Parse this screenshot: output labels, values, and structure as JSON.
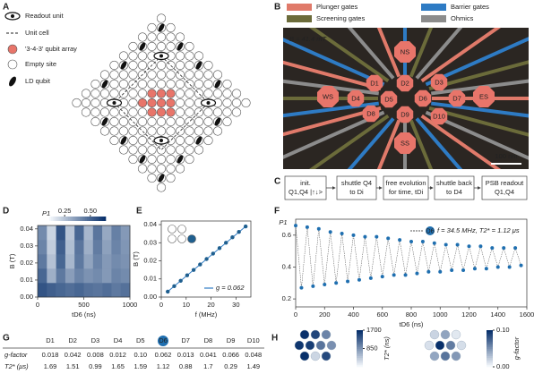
{
  "panel_a": {
    "letter": "A",
    "legend": [
      "Readout unit",
      "Unit cell",
      "'3-4-3' qubit array",
      "Empty site",
      "LD qubit"
    ]
  },
  "panel_b": {
    "letter": "B",
    "legend": [
      {
        "label": "Plunger gates",
        "color": "#e07a6a"
      },
      {
        "label": "Barrier gates",
        "color": "#2e7bc4"
      },
      {
        "label": "Screening gates",
        "color": "#6b6b3a"
      },
      {
        "label": "Ohmics",
        "color": "#8c8c8c"
      }
    ],
    "field": "B = 41.4 mT",
    "scale": "100 nm",
    "gates": [
      "NS",
      "WS",
      "ES",
      "SS",
      "D1",
      "D2",
      "D3",
      "D4",
      "D5",
      "D6",
      "D7",
      "D8",
      "D9",
      "D10"
    ]
  },
  "panel_c": {
    "letter": "C",
    "steps": [
      [
        "init.",
        "Q1,Q4 |↑↓>"
      ],
      [
        "shuttle Q4",
        "to Di"
      ],
      [
        "free evolution",
        "for time, tDi"
      ],
      [
        "shuttle back",
        "to D4"
      ],
      [
        "PSB readout",
        "Q1,Q4"
      ]
    ]
  },
  "panel_d": {
    "letter": "D",
    "xlabel": "tD6 (ns)",
    "ylabel": "B (T)",
    "xlim": [
      0,
      1000
    ],
    "xticks": [
      0,
      500,
      1000
    ],
    "ylim": [
      0,
      0.042
    ],
    "yticks": [
      {
        "value": 0,
        "label": "0.00"
      },
      0.01,
      0.02,
      0.03,
      0.04
    ],
    "colorbar_label": "P1",
    "clim": [
      0.1,
      0.65
    ],
    "cticks": [
      0.25,
      {
        "value": 0.5,
        "label": "0.50"
      }
    ],
    "z": [
      [
        0.55,
        0.52,
        0.5,
        0.48,
        0.5,
        0.47,
        0.46,
        0.48,
        0.45,
        0.47
      ],
      [
        0.5,
        0.3,
        0.45,
        0.35,
        0.42,
        0.38,
        0.4,
        0.36,
        0.42,
        0.4
      ],
      [
        0.45,
        0.25,
        0.5,
        0.28,
        0.45,
        0.33,
        0.42,
        0.36,
        0.4,
        0.38
      ],
      [
        0.42,
        0.22,
        0.52,
        0.26,
        0.46,
        0.3,
        0.44,
        0.34,
        0.42,
        0.37
      ],
      [
        0.4,
        0.2,
        0.55,
        0.24,
        0.5,
        0.28,
        0.46,
        0.32,
        0.43,
        0.36
      ]
    ]
  },
  "panel_e": {
    "letter": "E",
    "xlabel": "f (MHz)",
    "ylabel": "B (T)",
    "xlim": [
      0,
      36
    ],
    "xticks": [
      0,
      10,
      20,
      30
    ],
    "ylim": [
      0,
      0.042
    ],
    "yticks": [
      {
        "value": 0,
        "label": "0.00"
      },
      0.01,
      0.02,
      0.03,
      0.04
    ],
    "legend": "g = 0.062",
    "x": [
      2.6,
      5.2,
      7.8,
      10.4,
      13.0,
      15.6,
      18.2,
      20.8,
      23.4,
      26.0,
      28.6,
      31.2,
      33.9
    ],
    "values": [
      0.003,
      0.006,
      0.009,
      0.012,
      0.015,
      0.018,
      0.021,
      0.024,
      0.027,
      0.03,
      0.033,
      0.036,
      0.039
    ]
  },
  "panel_f": {
    "letter": "F",
    "xlabel": "tD6 (ns)",
    "ylabel": "P1",
    "xlim": [
      0,
      1600
    ],
    "xticks": [
      0,
      200,
      400,
      600,
      800,
      1000,
      1200,
      1400,
      1600
    ],
    "ylim": [
      0.15,
      0.7
    ],
    "yticks": [
      0.2,
      0.4,
      0.6
    ],
    "legend_marker": "D6",
    "legend": "f = 34.5 MHz, T2* = 1.12 μs",
    "x": [
      0,
      40,
      80,
      120,
      160,
      200,
      240,
      280,
      320,
      360,
      400,
      440,
      480,
      520,
      560,
      600,
      640,
      680,
      720,
      760,
      800,
      840,
      880,
      920,
      960,
      1000,
      1040,
      1080,
      1120,
      1160,
      1200,
      1240,
      1280,
      1320,
      1360,
      1400,
      1440,
      1480,
      1520,
      1560
    ],
    "values": [
      0.66,
      0.27,
      0.65,
      0.28,
      0.64,
      0.29,
      0.62,
      0.3,
      0.61,
      0.31,
      0.6,
      0.32,
      0.59,
      0.33,
      0.59,
      0.34,
      0.58,
      0.35,
      0.57,
      0.35,
      0.56,
      0.36,
      0.56,
      0.37,
      0.55,
      0.37,
      0.54,
      0.38,
      0.54,
      0.38,
      0.53,
      0.39,
      0.53,
      0.39,
      0.52,
      0.4,
      0.52,
      0.4,
      0.52,
      0.41
    ]
  },
  "panel_g": {
    "letter": "G",
    "columns": [
      "D1",
      "D2",
      "D3",
      "D4",
      "D5",
      "D6",
      "D7",
      "D8",
      "D9",
      "D10"
    ],
    "highlight": "D6",
    "rows": [
      {
        "label": "g-factor",
        "values": [
          0.018,
          0.042,
          0.008,
          0.012,
          {
            "value": 0.1,
            "label": "0.10"
          },
          0.062,
          0.013,
          0.041,
          0.066,
          0.048
        ]
      },
      {
        "label": "T2* (μs)",
        "values": [
          1.69,
          1.51,
          0.99,
          1.65,
          1.59,
          1.12,
          0.88,
          1.7,
          0.29,
          1.49
        ]
      }
    ]
  },
  "panel_h": {
    "letter": "H",
    "t2": {
      "label": "T2* (ns)",
      "clim": [
        0,
        1700
      ],
      "ticks": [
        850,
        1700
      ],
      "values": [
        1690,
        1510,
        990,
        1650,
        1590,
        1120,
        880,
        1700,
        290,
        1490
      ]
    },
    "g": {
      "label": "g-factor",
      "clim": [
        0,
        0.1
      ],
      "ticks": [
        {
          "value": 0,
          "label": "0.00"
        },
        {
          "value": 0.1,
          "label": "0.10"
        }
      ],
      "values": [
        0.018,
        0.042,
        0.008,
        0.012,
        0.1,
        0.062,
        0.013,
        0.041,
        0.066,
        0.048
      ]
    }
  }
}
